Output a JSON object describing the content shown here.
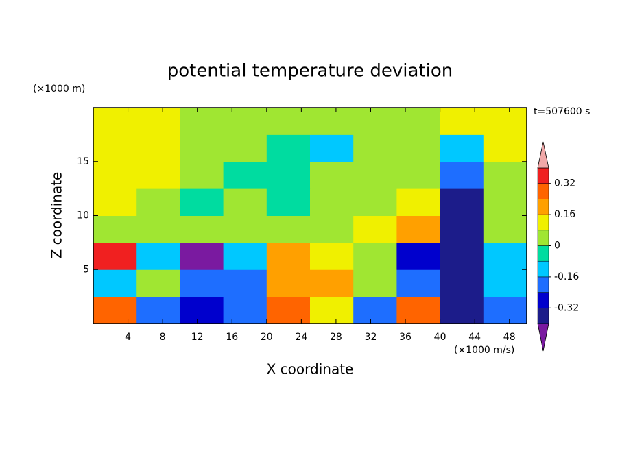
{
  "chart_data": {
    "type": "heatmap",
    "title": "potential temperature deviation",
    "x_label": "X coordinate",
    "y_label": "Z coordinate",
    "x_unit": "(×1000 m/s)",
    "y_unit": "(×1000 m)",
    "time_label": "t=507600 s",
    "xlim": [
      0,
      50
    ],
    "ylim": [
      0,
      20
    ],
    "xticks": [
      4,
      8,
      12,
      16,
      20,
      24,
      28,
      32,
      36,
      40,
      44,
      48
    ],
    "yticks": [
      5,
      10,
      15
    ],
    "x": [
      2.5,
      7.5,
      12.5,
      17.5,
      22.5,
      27.5,
      32.5,
      37.5,
      42.5,
      47.5
    ],
    "y": [
      1.25,
      3.75,
      6.25,
      8.75,
      11.25,
      13.75,
      16.25,
      18.75
    ],
    "values": [
      [
        0.3,
        -0.2,
        -0.3,
        -0.2,
        0.25,
        0.1,
        -0.2,
        0.3,
        -0.35,
        -0.2
      ],
      [
        -0.1,
        0,
        -0.2,
        -0.2,
        0.2,
        0.2,
        0.05,
        -0.2,
        -0.35,
        -0.1
      ],
      [
        0.35,
        -0.1,
        -0.45,
        -0.1,
        0.2,
        0.12,
        0.03,
        -0.3,
        -0.35,
        -0.1
      ],
      [
        0.04,
        0.04,
        0.04,
        0.04,
        0.04,
        0.04,
        0.1,
        0.2,
        -0.35,
        0.04
      ],
      [
        0.1,
        0.04,
        -0.04,
        0.04,
        -0.04,
        0.04,
        0.04,
        0.1,
        -0.35,
        0.04
      ],
      [
        0.1,
        0.1,
        0.04,
        -0.04,
        -0.04,
        0.04,
        0.04,
        0.04,
        -0.2,
        0.04
      ],
      [
        0.1,
        0.1,
        0.04,
        0.04,
        -0.04,
        -0.1,
        0.04,
        0.04,
        -0.1,
        0.1
      ],
      [
        0.1,
        0.1,
        0.04,
        0.04,
        0.04,
        0.04,
        0.04,
        0.04,
        0.1,
        0.1
      ]
    ],
    "levels": [
      -0.4,
      -0.32,
      -0.24,
      -0.16,
      -0.08,
      0,
      0.08,
      0.16,
      0.24,
      0.32,
      0.4
    ],
    "colors": [
      "#1c1c8a",
      "#0000cd",
      "#1e6eff",
      "#00c8ff",
      "#00dca0",
      "#a0e632",
      "#f0f000",
      "#ffa000",
      "#ff6400",
      "#f02020"
    ],
    "under_color": "#7a1aa0",
    "over_color": "#f0a8a8",
    "colorbar_ticks": [
      0.32,
      0.16,
      0,
      -0.16,
      -0.32
    ]
  }
}
